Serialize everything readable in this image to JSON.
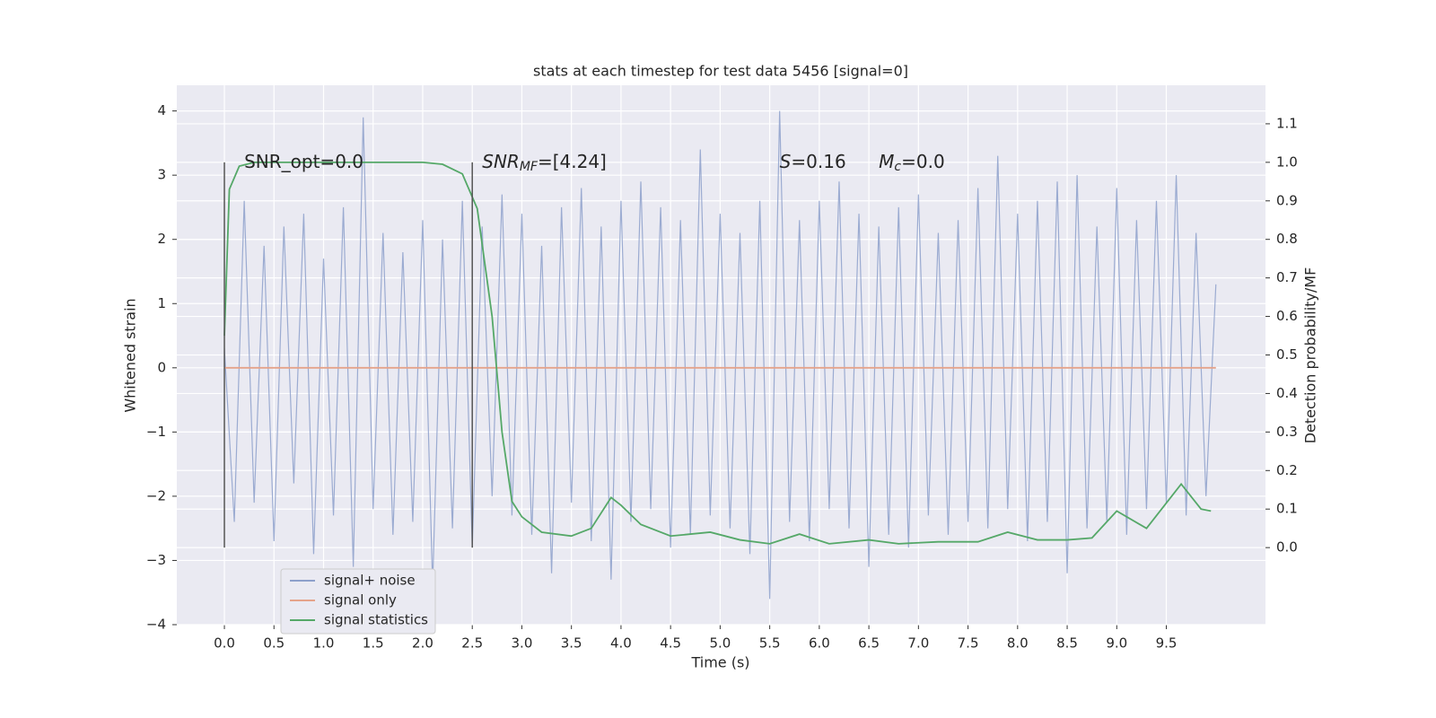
{
  "chart_data": {
    "type": "line",
    "title": "stats at each timestep for test data 5456 [signal=0]",
    "xlabel": "Time (s)",
    "ylabel": "Whitened strain",
    "y2label": "Detection probability/MF",
    "grid": true,
    "legend": "lower left",
    "xlim": [
      -0.48,
      10.5
    ],
    "ylim": [
      -4.0,
      4.4
    ],
    "y2lim": [
      -0.2,
      1.2
    ],
    "xticks": [
      {
        "value": 0,
        "label": "0.0"
      },
      {
        "value": 0.5,
        "label": "0.5"
      },
      {
        "value": 1,
        "label": "1.0"
      },
      {
        "value": 1.5,
        "label": "1.5"
      },
      {
        "value": 2,
        "label": "2.0"
      },
      {
        "value": 2.5,
        "label": "2.5"
      },
      {
        "value": 3,
        "label": "3.0"
      },
      {
        "value": 3.5,
        "label": "3.5"
      },
      {
        "value": 4,
        "label": "4.0"
      },
      {
        "value": 4.5,
        "label": "4.5"
      },
      {
        "value": 5,
        "label": "5.0"
      },
      {
        "value": 5.5,
        "label": "5.5"
      },
      {
        "value": 6,
        "label": "6.0"
      },
      {
        "value": 6.5,
        "label": "6.5"
      },
      {
        "value": 7,
        "label": "7.0"
      },
      {
        "value": 7.5,
        "label": "7.5"
      },
      {
        "value": 8,
        "label": "8.0"
      },
      {
        "value": 8.5,
        "label": "8.5"
      },
      {
        "value": 9,
        "label": "9.0"
      },
      {
        "value": 9.5,
        "label": "9.5"
      }
    ],
    "yticks": [
      {
        "value": -4,
        "label": "−4"
      },
      {
        "value": -3,
        "label": "−3"
      },
      {
        "value": -2,
        "label": "−2"
      },
      {
        "value": -1,
        "label": "−1"
      },
      0,
      1,
      2,
      3,
      4
    ],
    "y2ticks": [
      {
        "value": 0,
        "label": "0.0"
      },
      {
        "value": 0.1,
        "label": "0.1"
      },
      {
        "value": 0.2,
        "label": "0.2"
      },
      {
        "value": 0.3,
        "label": "0.3"
      },
      {
        "value": 0.4,
        "label": "0.4"
      },
      {
        "value": 0.5,
        "label": "0.5"
      },
      {
        "value": 0.6,
        "label": "0.6"
      },
      {
        "value": 0.7,
        "label": "0.7"
      },
      {
        "value": 0.8,
        "label": "0.8"
      },
      {
        "value": 0.9,
        "label": "0.9"
      },
      {
        "value": 1.0,
        "label": "1.0"
      },
      {
        "value": 1.1,
        "label": "1.1"
      }
    ],
    "series": [
      {
        "name": "signal+ noise",
        "color": "#8da0cb",
        "x": [
          0,
          0.1,
          0.2,
          0.3,
          0.4,
          0.5,
          0.6,
          0.7,
          0.8,
          0.9,
          1.0,
          1.1,
          1.2,
          1.3,
          1.4,
          1.5,
          1.6,
          1.7,
          1.8,
          1.9,
          2.0,
          2.1,
          2.2,
          2.3,
          2.4,
          2.5,
          2.6,
          2.7,
          2.8,
          2.9,
          3.0,
          3.1,
          3.2,
          3.3,
          3.4,
          3.5,
          3.6,
          3.7,
          3.8,
          3.9,
          4.0,
          4.1,
          4.2,
          4.3,
          4.4,
          4.5,
          4.6,
          4.7,
          4.8,
          4.9,
          5.0,
          5.1,
          5.2,
          5.3,
          5.4,
          5.5,
          5.6,
          5.7,
          5.8,
          5.9,
          6.0,
          6.1,
          6.2,
          6.3,
          6.4,
          6.5,
          6.6,
          6.7,
          6.8,
          6.9,
          7.0,
          7.1,
          7.2,
          7.3,
          7.4,
          7.5,
          7.6,
          7.7,
          7.8,
          7.9,
          8.0,
          8.1,
          8.2,
          8.3,
          8.4,
          8.5,
          8.6,
          8.7,
          8.8,
          8.9,
          9.0,
          9.1,
          9.2,
          9.3,
          9.4,
          9.5,
          9.6,
          9.7,
          9.8,
          9.9,
          10.0
        ],
        "values": [
          0.3,
          -2.4,
          2.6,
          -2.1,
          1.9,
          -2.7,
          2.2,
          -1.8,
          2.4,
          -2.9,
          1.7,
          -2.3,
          2.5,
          -3.1,
          3.9,
          -2.2,
          2.1,
          -2.6,
          1.8,
          -2.4,
          2.3,
          -3.4,
          2.0,
          -2.5,
          2.6,
          -2.8,
          2.2,
          -2.0,
          2.7,
          -2.3,
          2.4,
          -2.6,
          1.9,
          -3.2,
          2.5,
          -2.1,
          2.8,
          -2.7,
          2.2,
          -3.3,
          2.6,
          -2.4,
          2.9,
          -2.2,
          2.5,
          -2.8,
          2.3,
          -2.6,
          3.4,
          -2.3,
          2.4,
          -2.5,
          2.1,
          -2.9,
          2.6,
          -3.6,
          4.0,
          -2.4,
          2.3,
          -2.7,
          2.6,
          -2.2,
          2.9,
          -2.5,
          2.4,
          -3.1,
          2.2,
          -2.6,
          2.5,
          -2.8,
          2.7,
          -2.3,
          2.1,
          -2.6,
          2.3,
          -2.4,
          2.8,
          -2.5,
          3.3,
          -2.2,
          2.4,
          -2.7,
          2.6,
          -2.4,
          2.9,
          -3.2,
          3.0,
          -2.5,
          2.2,
          -2.4,
          2.8,
          -2.6,
          2.3,
          -2.2,
          2.6,
          -2.1,
          3.0,
          -2.3,
          2.1,
          -2.0,
          1.3
        ]
      },
      {
        "name": "signal only",
        "color": "#e5a38a",
        "x": [
          0,
          10.0
        ],
        "values": [
          0,
          0
        ]
      },
      {
        "name": "signal statistics",
        "color": "#55a868",
        "axis": "y2",
        "x": [
          0,
          0.05,
          0.15,
          0.3,
          1.0,
          2.0,
          2.2,
          2.4,
          2.55,
          2.7,
          2.8,
          2.9,
          3.0,
          3.2,
          3.5,
          3.7,
          3.9,
          4.0,
          4.2,
          4.5,
          4.9,
          5.2,
          5.5,
          5.8,
          6.1,
          6.5,
          6.8,
          7.2,
          7.6,
          7.9,
          8.2,
          8.5,
          8.75,
          9.0,
          9.3,
          9.65,
          9.85,
          9.95
        ],
        "values": [
          0.55,
          0.93,
          0.99,
          1.0,
          1.0,
          1.0,
          0.995,
          0.97,
          0.88,
          0.6,
          0.3,
          0.12,
          0.08,
          0.04,
          0.03,
          0.05,
          0.13,
          0.11,
          0.06,
          0.03,
          0.04,
          0.02,
          0.01,
          0.035,
          0.01,
          0.02,
          0.01,
          0.015,
          0.015,
          0.04,
          0.02,
          0.02,
          0.025,
          0.095,
          0.05,
          0.165,
          0.1,
          0.095
        ]
      }
    ],
    "vlines": [
      0,
      2.5
    ],
    "vline_range": [
      -2.8,
      3.2
    ],
    "annotations": [
      {
        "x": 0.2,
        "y": 3.2,
        "text": "SNR_opt=0.0"
      },
      {
        "x": 2.6,
        "y": 3.2,
        "italic": "SNR",
        "sub": "MF",
        "text": "=[4.24]"
      },
      {
        "x": 5.6,
        "y": 3.2,
        "italic": "S",
        "text": "=0.16"
      },
      {
        "x": 6.6,
        "y": 3.2,
        "italic": "M",
        "sub": "c",
        "text": "=0.0"
      }
    ]
  }
}
